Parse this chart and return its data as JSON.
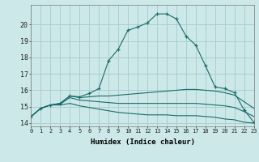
{
  "xlabel": "Humidex (Indice chaleur)",
  "bg_color": "#cce8e8",
  "grid_color": "#aacfcf",
  "line_color": "#1a6b6b",
  "xmin": 0,
  "xmax": 23,
  "ymin": 13.8,
  "ymax": 21.2,
  "yticks": [
    14,
    15,
    16,
    17,
    18,
    19,
    20
  ],
  "series": [
    {
      "x": [
        0,
        1,
        2,
        3,
        4,
        5,
        6,
        7,
        8,
        9,
        10,
        11,
        12,
        13,
        14,
        15,
        16,
        17,
        18,
        19,
        20,
        21,
        22,
        23
      ],
      "y": [
        14.4,
        14.9,
        15.1,
        15.2,
        15.65,
        15.6,
        15.8,
        16.1,
        17.8,
        18.5,
        19.65,
        19.85,
        20.1,
        20.65,
        20.65,
        20.35,
        19.3,
        18.75,
        17.5,
        16.2,
        16.1,
        15.85,
        14.8,
        14.05
      ],
      "marker": true,
      "linestyle": "-"
    },
    {
      "x": [
        0,
        1,
        2,
        3,
        4,
        5,
        6,
        7,
        8,
        9,
        10,
        11,
        12,
        13,
        14,
        15,
        16,
        17,
        18,
        19,
        20,
        21,
        22,
        23
      ],
      "y": [
        14.4,
        14.9,
        15.1,
        15.2,
        15.65,
        15.55,
        15.6,
        15.65,
        15.65,
        15.7,
        15.75,
        15.8,
        15.85,
        15.9,
        15.95,
        16.0,
        16.05,
        16.05,
        16.0,
        15.95,
        15.85,
        15.7,
        15.3,
        14.9
      ],
      "marker": false,
      "linestyle": "-"
    },
    {
      "x": [
        0,
        1,
        2,
        3,
        4,
        5,
        6,
        7,
        8,
        9,
        10,
        11,
        12,
        13,
        14,
        15,
        16,
        17,
        18,
        19,
        20,
        21,
        22,
        23
      ],
      "y": [
        14.4,
        14.9,
        15.1,
        15.15,
        15.55,
        15.4,
        15.35,
        15.3,
        15.25,
        15.2,
        15.2,
        15.2,
        15.2,
        15.2,
        15.2,
        15.2,
        15.2,
        15.2,
        15.15,
        15.1,
        15.05,
        14.95,
        14.7,
        14.4
      ],
      "marker": false,
      "linestyle": "-"
    },
    {
      "x": [
        0,
        1,
        2,
        3,
        4,
        5,
        6,
        7,
        8,
        9,
        10,
        11,
        12,
        13,
        14,
        15,
        16,
        17,
        18,
        19,
        20,
        21,
        22,
        23
      ],
      "y": [
        14.4,
        14.9,
        15.1,
        15.1,
        15.2,
        15.05,
        14.95,
        14.85,
        14.75,
        14.65,
        14.6,
        14.55,
        14.5,
        14.5,
        14.5,
        14.45,
        14.45,
        14.45,
        14.4,
        14.35,
        14.25,
        14.2,
        14.05,
        14.0
      ],
      "marker": false,
      "linestyle": "-"
    }
  ]
}
